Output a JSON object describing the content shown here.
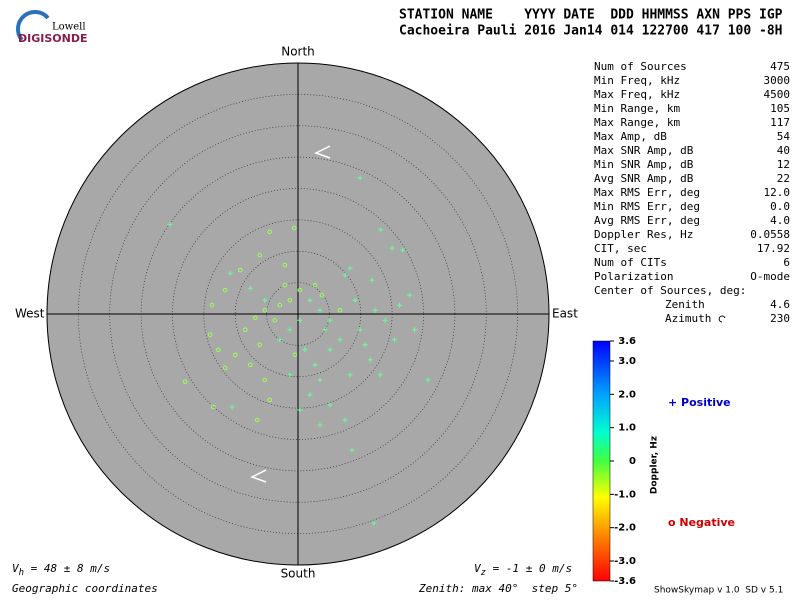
{
  "logo": {
    "top": "Lowell",
    "bottom": "DIGISONDE"
  },
  "header": {
    "line1": "STATION NAME    YYYY DATE  DDD HHMMSS AXN PPS IGP",
    "line2": "Cachoeira Pauli 2016 Jan14 014 122700 417 100 -8H"
  },
  "compass": {
    "north": "North",
    "south": "South",
    "east": "East",
    "west": "West"
  },
  "stats": [
    [
      "Num of Sources",
      "475"
    ],
    [
      "Min Freq, kHz",
      "3000"
    ],
    [
      "Max Freq, kHz",
      "4500"
    ],
    [
      "Min Range, km",
      "105"
    ],
    [
      "Max Range, km",
      "117"
    ],
    [
      "Max Amp, dB",
      "54"
    ],
    [
      "Max SNR Amp, dB",
      "40"
    ],
    [
      "Min SNR Amp, dB",
      "12"
    ],
    [
      "Avg SNR Amp, dB",
      "22"
    ],
    [
      "Max RMS Err, deg",
      "12.0"
    ],
    [
      "Min RMS Err, deg",
      "0.0"
    ],
    [
      "Avg RMS Err, deg",
      "4.0"
    ],
    [
      "Doppler Res, Hz",
      "0.0558"
    ],
    [
      "CIT, sec",
      "17.92"
    ],
    [
      "Num of CITs",
      "6"
    ],
    [
      "Polarization",
      "O-mode"
    ]
  ],
  "center": {
    "heading": "Center of Sources, deg:",
    "zenith": [
      "Zenith",
      "4.6"
    ],
    "azimuth": [
      "Azimuth",
      "230"
    ]
  },
  "colorbar": {
    "label": "Doppler, Hz",
    "range": [
      -3.6,
      3.6
    ],
    "ticks": [
      {
        "value": 3.6,
        "label": "3.6"
      },
      {
        "value": 3.0,
        "label": "3.0"
      },
      {
        "value": 2.0,
        "label": "2.0"
      },
      {
        "value": 1.0,
        "label": "1.0"
      },
      0,
      {
        "value": -1.0,
        "label": "-1.0"
      },
      {
        "value": -2.0,
        "label": "-2.0"
      },
      {
        "value": -3.0,
        "label": "-3.0"
      },
      {
        "value": -3.6,
        "label": "-3.6"
      }
    ]
  },
  "legend": {
    "positive": "+ Positive",
    "negative": "o Negative"
  },
  "footer": {
    "vh": {
      "symbol": "V",
      "sub": "h",
      "text": " = 48 ± 8 m/s"
    },
    "vz": {
      "symbol": "V",
      "sub": "z",
      "text": " = -1 ± 0 m/s"
    },
    "coordinates": "Geographic coordinates",
    "zenith": "Zenith: max 40°  step 5°",
    "version": "ShowSkymap v 1.0  SD v 5.1"
  },
  "sources": {
    "positive": [
      [
        9.9,
        21.7
      ],
      [
        13.2,
        13.4
      ],
      [
        16.7,
        10.2
      ],
      [
        15.0,
        10.5
      ],
      [
        -20.4,
        14.3
      ],
      [
        8.3,
        7.3
      ],
      [
        7.5,
        6.2
      ],
      [
        11.8,
        5.4
      ],
      [
        17.8,
        3.0
      ],
      [
        16.2,
        1.4
      ],
      [
        13.9,
        -1.0
      ],
      [
        9.9,
        -2.5
      ],
      [
        6.7,
        -4.1
      ],
      [
        5.1,
        -5.7
      ],
      [
        11.5,
        -7.3
      ],
      [
        13.1,
        -9.7
      ],
      [
        8.3,
        -9.7
      ],
      [
        3.5,
        -10.5
      ],
      [
        1.9,
        -12.9
      ],
      [
        5.1,
        -14.5
      ],
      [
        0.3,
        -15.3
      ],
      [
        7.5,
        -16.9
      ],
      [
        3.5,
        -17.7
      ],
      [
        8.6,
        -21.7
      ],
      [
        12.1,
        -33.3
      ],
      [
        20.7,
        -10.5
      ],
      [
        18.6,
        -2.5
      ],
      [
        15.4,
        -4.1
      ],
      [
        12.3,
        0.6
      ],
      [
        9.1,
        2.2
      ],
      [
        5.1,
        -1.0
      ],
      [
        3.5,
        0.6
      ],
      [
        1.9,
        2.2
      ],
      [
        0.3,
        -1.0
      ],
      [
        -1.3,
        -2.5
      ],
      [
        -2.9,
        -4.1
      ],
      [
        1.1,
        -5.7
      ],
      [
        2.7,
        -8.1
      ],
      [
        -10.8,
        6.5
      ],
      [
        -7.6,
        4.1
      ],
      [
        -5.3,
        2.2
      ],
      [
        -10.5,
        -14.8
      ],
      [
        -1.3,
        -9.7
      ],
      [
        4.3,
        -2.5
      ],
      [
        10.7,
        -4.9
      ]
    ],
    "negative": [
      [
        -0.6,
        13.7
      ],
      [
        -4.5,
        13.1
      ],
      [
        -6.1,
        9.4
      ],
      [
        -2.1,
        7.8
      ],
      [
        -9.2,
        7.0
      ],
      [
        -11.6,
        3.8
      ],
      [
        -13.7,
        1.4
      ],
      [
        -14.0,
        -3.3
      ],
      [
        -12.7,
        -5.7
      ],
      [
        -10.0,
        -6.5
      ],
      [
        -8.4,
        -2.5
      ],
      [
        -6.8,
        -0.6
      ],
      [
        -5.3,
        0.6
      ],
      [
        -2.9,
        1.4
      ],
      [
        -1.3,
        2.2
      ],
      [
        -3.7,
        -1.0
      ],
      [
        -6.1,
        -4.9
      ],
      [
        -7.6,
        -8.1
      ],
      [
        -5.3,
        -10.5
      ],
      [
        -18.0,
        -10.8
      ],
      [
        -13.5,
        -14.8
      ],
      [
        -6.5,
        -16.9
      ],
      [
        -4.5,
        -13.7
      ],
      [
        -11.6,
        -8.6
      ],
      [
        0.3,
        3.8
      ],
      [
        2.7,
        4.6
      ],
      [
        3.8,
        3.0
      ],
      [
        6.7,
        0.6
      ],
      [
        -2.1,
        4.6
      ],
      [
        -0.5,
        -6.5
      ]
    ]
  }
}
